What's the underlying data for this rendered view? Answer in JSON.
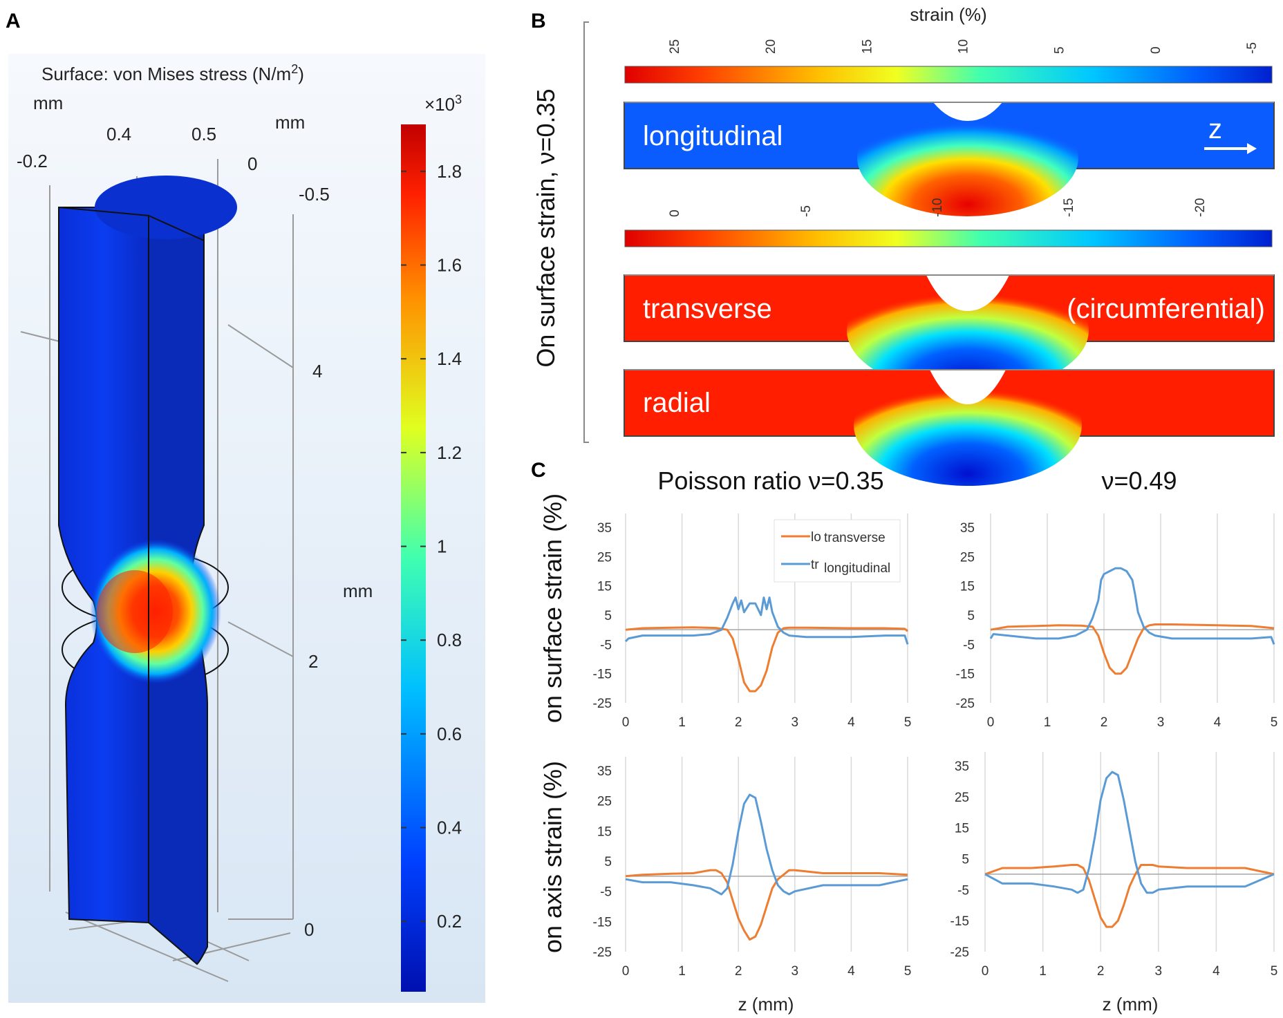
{
  "panels": {
    "a": "A",
    "b": "B",
    "c": "C"
  },
  "colors": {
    "orange": "#ED7D31",
    "blue": "#5B9BD5",
    "jet_red": "#ff1a00",
    "jet_blue": "#0030e0",
    "grid": "#d9d9d9"
  },
  "panel_a": {
    "title": "Surface: von Mises stress (N/m",
    "title_sup": "2",
    "title_close": ")",
    "units": {
      "mm1": "mm",
      "mm2": "mm",
      "mm3": "mm"
    },
    "axis_ticks": {
      "t1": "-0.2",
      "t2": "0.4",
      "t3": "0.5",
      "t4": "0",
      "t5": "-0.5",
      "t6": "4",
      "t7": "2",
      "t8": "0"
    },
    "colorbar": {
      "multiplier_base": "×10",
      "multiplier_exp": "3",
      "ticks": [
        "1.8",
        "1.6",
        "1.4",
        "1.2",
        "1",
        "0.8",
        "0.6",
        "0.4",
        "0.2"
      ]
    }
  },
  "panel_b": {
    "side_label": "On surface strain, ν=0.35",
    "title": "strain (%)",
    "colorbar1_ticks": [
      "25",
      "20",
      "15",
      "10",
      "5",
      "0",
      "-5"
    ],
    "colorbar2_ticks": [
      "0",
      "-5",
      "-10",
      "-15",
      "-20"
    ],
    "maps": {
      "longitudinal": "longitudinal",
      "z_label": "z",
      "transverse": "transverse",
      "circumferential": "(circumferential)",
      "radial": "radial"
    }
  },
  "panel_c": {
    "col1_title": "Poisson ratio ν=0.35",
    "col2_title": "ν=0.49",
    "row1_label": "on surface strain (%)",
    "row2_label": "on axis strain (%)",
    "xlabel": "z (mm)",
    "legend": {
      "k1": "lo",
      "v1": "transverse",
      "k2": "tr",
      "v2": "longitudinal"
    }
  },
  "chart_data": [
    {
      "type": "line",
      "title": "Poisson ratio ν=0.35 — on surface strain",
      "xlabel": "",
      "ylabel": "on surface strain (%)",
      "xlim": [
        0,
        5
      ],
      "ylim": [
        -25,
        35
      ],
      "x_ticks": [
        "0",
        "1",
        "2",
        "3",
        "4",
        "5"
      ],
      "y_ticks": [
        "35",
        "25",
        "15",
        "5",
        "-5",
        "-15",
        "-25"
      ],
      "series": [
        {
          "name": "transverse",
          "color": "#ED7D31",
          "x": [
            0,
            0.3,
            0.8,
            1.2,
            1.6,
            1.8,
            1.9,
            2.0,
            2.1,
            2.2,
            2.3,
            2.4,
            2.5,
            2.6,
            2.7,
            2.8,
            2.9,
            3.2,
            4.0,
            4.6,
            4.95,
            5.0
          ],
          "y": [
            0,
            0.5,
            0.7,
            0.8,
            0.6,
            0,
            -3,
            -10,
            -18,
            -21,
            -21,
            -19,
            -14,
            -6,
            -1,
            0.5,
            0.7,
            0.7,
            0.5,
            0.5,
            0.3,
            -0.5
          ]
        },
        {
          "name": "longitudinal",
          "color": "#5B9BD5",
          "x": [
            0,
            0.05,
            0.3,
            0.8,
            1.2,
            1.5,
            1.7,
            1.8,
            1.9,
            1.95,
            2.0,
            2.05,
            2.1,
            2.2,
            2.3,
            2.4,
            2.45,
            2.5,
            2.55,
            2.6,
            2.7,
            2.8,
            2.9,
            3.2,
            4.0,
            4.6,
            4.95,
            5.0
          ],
          "y": [
            -4,
            -3,
            -2,
            -2,
            -2,
            -1.5,
            0,
            4,
            9,
            11,
            7,
            10,
            6,
            9,
            9,
            5,
            11,
            7,
            11,
            6,
            1,
            -1,
            -2,
            -2.5,
            -2.5,
            -2,
            -2,
            -5
          ]
        }
      ]
    },
    {
      "type": "line",
      "title": "ν=0.49 — on surface strain",
      "xlabel": "",
      "ylabel": "",
      "xlim": [
        0,
        5
      ],
      "ylim": [
        -25,
        35
      ],
      "x_ticks": [
        "0",
        "1",
        "2",
        "3",
        "4",
        "5"
      ],
      "y_ticks": [
        "35",
        "25",
        "15",
        "5",
        "-5",
        "-15",
        "-25"
      ],
      "series": [
        {
          "name": "transverse",
          "color": "#ED7D31",
          "x": [
            0,
            0.3,
            0.8,
            1.2,
            1.6,
            1.8,
            1.9,
            2.0,
            2.1,
            2.2,
            2.3,
            2.4,
            2.5,
            2.6,
            2.7,
            2.8,
            2.9,
            3.2,
            4.0,
            4.6,
            5.0
          ],
          "y": [
            0,
            1,
            1.3,
            1.5,
            1.4,
            1,
            -2,
            -8,
            -13,
            -15,
            -15,
            -13,
            -8,
            -3,
            0.5,
            1.5,
            1.8,
            1.8,
            1.5,
            1.3,
            0.5
          ]
        },
        {
          "name": "longitudinal",
          "color": "#5B9BD5",
          "x": [
            0,
            0.05,
            0.3,
            0.8,
            1.2,
            1.5,
            1.7,
            1.8,
            1.9,
            1.95,
            2.0,
            2.1,
            2.2,
            2.3,
            2.4,
            2.5,
            2.55,
            2.6,
            2.7,
            2.8,
            2.9,
            3.2,
            4.0,
            4.6,
            4.95,
            5.0
          ],
          "y": [
            -3,
            -1.5,
            -2,
            -3,
            -3,
            -2,
            0,
            4,
            10,
            17,
            19,
            20,
            21,
            21,
            20,
            17,
            12,
            6,
            1,
            -1,
            -2,
            -3,
            -3,
            -3,
            -2.5,
            -5
          ]
        }
      ]
    },
    {
      "type": "line",
      "title": "Poisson ratio ν=0.35 — on axis strain",
      "xlabel": "z (mm)",
      "ylabel": "on axis strain (%)",
      "xlim": [
        0,
        5
      ],
      "ylim": [
        -25,
        35
      ],
      "x_ticks": [
        "0",
        "1",
        "2",
        "3",
        "4",
        "5"
      ],
      "y_ticks": [
        "35",
        "25",
        "15",
        "5",
        "-5",
        "-15",
        "-25"
      ],
      "series": [
        {
          "name": "transverse",
          "color": "#ED7D31",
          "x": [
            0,
            0.3,
            0.8,
            1.2,
            1.5,
            1.6,
            1.7,
            1.8,
            1.9,
            2.0,
            2.1,
            2.2,
            2.3,
            2.4,
            2.5,
            2.6,
            2.7,
            2.8,
            2.9,
            3.0,
            3.5,
            4.5,
            5.0
          ],
          "y": [
            0,
            0.5,
            0.8,
            1,
            2,
            2,
            1,
            -2,
            -8,
            -14,
            -18,
            -21,
            -20,
            -16,
            -10,
            -4,
            -1,
            0.5,
            2,
            2,
            1,
            1,
            0.5
          ]
        },
        {
          "name": "longitudinal",
          "color": "#5B9BD5",
          "x": [
            0,
            0.3,
            0.8,
            1.2,
            1.5,
            1.6,
            1.7,
            1.8,
            1.9,
            2.0,
            2.1,
            2.2,
            2.3,
            2.4,
            2.5,
            2.6,
            2.7,
            2.8,
            2.9,
            3.0,
            3.5,
            4.5,
            5.0
          ],
          "y": [
            -1,
            -2,
            -2,
            -3,
            -4,
            -5,
            -6,
            -4,
            4,
            15,
            24,
            27,
            26,
            18,
            9,
            2,
            -3,
            -5,
            -6,
            -5,
            -3,
            -3,
            -1
          ]
        }
      ]
    },
    {
      "type": "line",
      "title": "ν=0.49 — on axis strain",
      "xlabel": "z (mm)",
      "ylabel": "",
      "xlim": [
        0,
        5
      ],
      "ylim": [
        -25,
        35
      ],
      "x_ticks": [
        "0",
        "1",
        "2",
        "3",
        "4",
        "5"
      ],
      "y_ticks": [
        "35",
        "25",
        "15",
        "5",
        "-5",
        "-15",
        "-25"
      ],
      "series": [
        {
          "name": "transverse",
          "color": "#ED7D31",
          "x": [
            0,
            0.3,
            0.8,
            1.2,
            1.5,
            1.6,
            1.7,
            1.8,
            1.9,
            2.0,
            2.1,
            2.2,
            2.3,
            2.4,
            2.5,
            2.6,
            2.7,
            2.8,
            2.9,
            3.0,
            3.5,
            4.5,
            5.0
          ],
          "y": [
            0,
            2,
            2,
            2.5,
            3,
            3,
            2,
            -2,
            -8,
            -14,
            -17,
            -17,
            -15,
            -10,
            -4,
            0,
            3,
            3,
            3,
            2.5,
            2,
            2,
            0
          ]
        },
        {
          "name": "longitudinal",
          "color": "#5B9BD5",
          "x": [
            0,
            0.3,
            0.8,
            1.2,
            1.5,
            1.6,
            1.7,
            1.8,
            1.9,
            2.0,
            2.1,
            2.2,
            2.3,
            2.4,
            2.5,
            2.6,
            2.7,
            2.8,
            2.9,
            3.0,
            3.5,
            4.5,
            5.0
          ],
          "y": [
            0,
            -3,
            -3,
            -4,
            -5,
            -6,
            -5,
            2,
            12,
            24,
            31,
            33,
            32,
            24,
            14,
            4,
            -3,
            -6,
            -6,
            -5,
            -4,
            -4,
            0
          ]
        }
      ]
    }
  ]
}
